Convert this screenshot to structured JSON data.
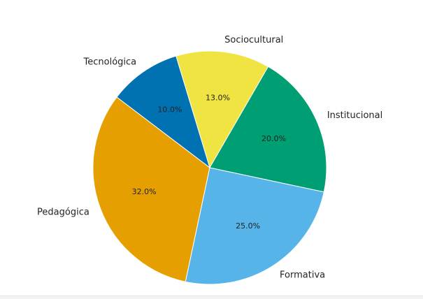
{
  "chart_data": {
    "type": "pie",
    "title": "",
    "slices": [
      {
        "label": "Sociocultural",
        "pct_label": "13.0%",
        "value": 13.0,
        "color": "#f0e442"
      },
      {
        "label": "Tecnológica",
        "pct_label": "10.0%",
        "value": 10.0,
        "color": "#0072b2"
      },
      {
        "label": "Pedagógica",
        "pct_label": "32.0%",
        "value": 32.0,
        "color": "#e69f00"
      },
      {
        "label": "Formativa",
        "pct_label": "25.0%",
        "value": 25.0,
        "color": "#56b4e9"
      },
      {
        "label": "Institucional",
        "pct_label": "20.0%",
        "value": 20.0,
        "color": "#009e73"
      }
    ],
    "start_angle_deg": 60,
    "direction": "counterclockwise"
  }
}
